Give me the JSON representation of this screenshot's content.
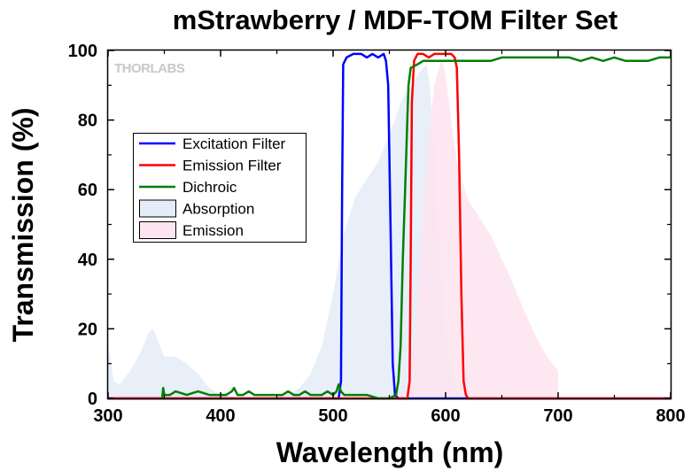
{
  "chart_data": {
    "type": "line",
    "title": "mStrawberry / MDF-TOM Filter Set",
    "xlabel": "Wavelength (nm)",
    "ylabel": "Transmission (%)",
    "xlim": [
      300,
      800
    ],
    "ylim": [
      0,
      100
    ],
    "x_ticks": [
      300,
      400,
      500,
      600,
      700,
      800
    ],
    "y_ticks": [
      0,
      20,
      40,
      60,
      80,
      100
    ],
    "grid": false,
    "legend_position": "top-left",
    "watermark": "THORLABS",
    "series": [
      {
        "name": "Excitation Filter",
        "kind": "line",
        "color": "#0000ff",
        "points": [
          [
            300,
            0
          ],
          [
            505,
            0
          ],
          [
            507,
            5
          ],
          [
            508,
            60
          ],
          [
            509,
            96
          ],
          [
            512,
            98
          ],
          [
            518,
            99
          ],
          [
            525,
            99
          ],
          [
            530,
            98
          ],
          [
            535,
            99
          ],
          [
            540,
            98
          ],
          [
            545,
            99
          ],
          [
            547,
            97
          ],
          [
            549,
            90
          ],
          [
            551,
            50
          ],
          [
            553,
            10
          ],
          [
            555,
            1
          ],
          [
            558,
            0
          ],
          [
            800,
            0
          ]
        ]
      },
      {
        "name": "Emission Filter",
        "kind": "line",
        "color": "#ff0000",
        "points": [
          [
            300,
            0
          ],
          [
            566,
            0
          ],
          [
            568,
            5
          ],
          [
            569,
            40
          ],
          [
            570,
            85
          ],
          [
            572,
            97
          ],
          [
            575,
            99
          ],
          [
            580,
            99
          ],
          [
            585,
            98
          ],
          [
            590,
            99
          ],
          [
            595,
            99
          ],
          [
            600,
            99
          ],
          [
            605,
            99
          ],
          [
            608,
            98
          ],
          [
            610,
            95
          ],
          [
            612,
            70
          ],
          [
            614,
            30
          ],
          [
            616,
            5
          ],
          [
            618,
            1
          ],
          [
            620,
            0
          ],
          [
            800,
            0
          ]
        ]
      },
      {
        "name": "Dichroic",
        "kind": "line",
        "color": "#008000",
        "points": [
          [
            348,
            0
          ],
          [
            349,
            3
          ],
          [
            350,
            1
          ],
          [
            355,
            1
          ],
          [
            360,
            2
          ],
          [
            370,
            1
          ],
          [
            380,
            2
          ],
          [
            390,
            1
          ],
          [
            395,
            1
          ],
          [
            400,
            1
          ],
          [
            405,
            1
          ],
          [
            410,
            2
          ],
          [
            412,
            3
          ],
          [
            415,
            1
          ],
          [
            420,
            1
          ],
          [
            425,
            2
          ],
          [
            430,
            1
          ],
          [
            440,
            1
          ],
          [
            450,
            1
          ],
          [
            455,
            1
          ],
          [
            460,
            2
          ],
          [
            465,
            1
          ],
          [
            470,
            1
          ],
          [
            475,
            2
          ],
          [
            480,
            1
          ],
          [
            485,
            1
          ],
          [
            490,
            1
          ],
          [
            495,
            2
          ],
          [
            500,
            1
          ],
          [
            503,
            2
          ],
          [
            505,
            4
          ],
          [
            507,
            2
          ],
          [
            510,
            1
          ],
          [
            515,
            1
          ],
          [
            520,
            1
          ],
          [
            525,
            1
          ],
          [
            530,
            1
          ],
          [
            540,
            0
          ],
          [
            550,
            0
          ],
          [
            556,
            1
          ],
          [
            558,
            5
          ],
          [
            560,
            15
          ],
          [
            562,
            40
          ],
          [
            564,
            60
          ],
          [
            566,
            80
          ],
          [
            567,
            90
          ],
          [
            569,
            95
          ],
          [
            575,
            96
          ],
          [
            580,
            97
          ],
          [
            590,
            97
          ],
          [
            600,
            97
          ],
          [
            610,
            97
          ],
          [
            620,
            97
          ],
          [
            630,
            97
          ],
          [
            640,
            97
          ],
          [
            650,
            98
          ],
          [
            660,
            98
          ],
          [
            680,
            98
          ],
          [
            700,
            98
          ],
          [
            710,
            98
          ],
          [
            720,
            97
          ],
          [
            730,
            98
          ],
          [
            740,
            97
          ],
          [
            750,
            98
          ],
          [
            760,
            97
          ],
          [
            770,
            97
          ],
          [
            780,
            97
          ],
          [
            790,
            98
          ],
          [
            800,
            98
          ]
        ]
      },
      {
        "name": "Absorption",
        "kind": "area",
        "color": "#e4ecf8",
        "points": [
          [
            300,
            16
          ],
          [
            305,
            5
          ],
          [
            310,
            4
          ],
          [
            320,
            8
          ],
          [
            330,
            14
          ],
          [
            336,
            19
          ],
          [
            340,
            20
          ],
          [
            345,
            16
          ],
          [
            350,
            12
          ],
          [
            360,
            12
          ],
          [
            370,
            10
          ],
          [
            380,
            7
          ],
          [
            390,
            3
          ],
          [
            400,
            1
          ],
          [
            420,
            0
          ],
          [
            440,
            0
          ],
          [
            460,
            1
          ],
          [
            470,
            3
          ],
          [
            480,
            7
          ],
          [
            490,
            15
          ],
          [
            500,
            30
          ],
          [
            510,
            48
          ],
          [
            520,
            58
          ],
          [
            530,
            63
          ],
          [
            540,
            68
          ],
          [
            550,
            76
          ],
          [
            555,
            80
          ],
          [
            560,
            85
          ],
          [
            565,
            88
          ],
          [
            570,
            90
          ],
          [
            575,
            93
          ],
          [
            580,
            95
          ],
          [
            583,
            96
          ],
          [
            586,
            90
          ],
          [
            590,
            70
          ],
          [
            595,
            40
          ],
          [
            600,
            20
          ],
          [
            605,
            8
          ],
          [
            610,
            2
          ],
          [
            615,
            0
          ],
          [
            800,
            0
          ]
        ]
      },
      {
        "name": "Emission",
        "kind": "area",
        "color": "#fde4ee",
        "points": [
          [
            555,
            0
          ],
          [
            565,
            2
          ],
          [
            570,
            10
          ],
          [
            575,
            30
          ],
          [
            580,
            55
          ],
          [
            585,
            75
          ],
          [
            590,
            90
          ],
          [
            594,
            95
          ],
          [
            597,
            97
          ],
          [
            600,
            93
          ],
          [
            605,
            80
          ],
          [
            610,
            68
          ],
          [
            615,
            62
          ],
          [
            620,
            57
          ],
          [
            630,
            52
          ],
          [
            640,
            47
          ],
          [
            650,
            40
          ],
          [
            660,
            33
          ],
          [
            670,
            25
          ],
          [
            680,
            18
          ],
          [
            690,
            12
          ],
          [
            700,
            8
          ],
          [
            700,
            0
          ]
        ]
      }
    ]
  }
}
